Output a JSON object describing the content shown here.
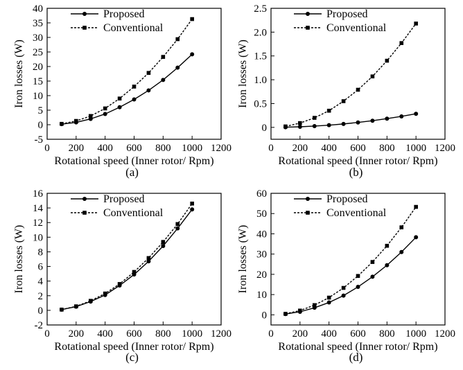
{
  "chart_data": [
    {
      "type": "line",
      "caption": "(a)",
      "xlabel": "Rotational speed (Inner rotor/ Rpm)",
      "ylabel": "Iron losses (W)",
      "xlim": [
        0,
        1200
      ],
      "ylim": [
        -5,
        40
      ],
      "xticks": [
        "0",
        "200",
        "400",
        "600",
        "800",
        "1000",
        "1200"
      ],
      "yticks": [
        "-5",
        "0",
        "5",
        "10",
        "15",
        "20",
        "25",
        "30",
        "35",
        "40"
      ],
      "legend_position": "top-left",
      "x": [
        100,
        200,
        300,
        400,
        500,
        600,
        700,
        800,
        900,
        1000
      ],
      "series": [
        {
          "name": "Proposed",
          "style": "solid",
          "marker": "circle",
          "values": [
            0.2,
            0.8,
            2.0,
            3.7,
            6.0,
            8.7,
            11.8,
            15.4,
            19.6,
            24.2
          ]
        },
        {
          "name": "Conventional",
          "style": "dashed",
          "marker": "square",
          "values": [
            0.3,
            1.3,
            3.0,
            5.6,
            9.0,
            13.1,
            17.8,
            23.3,
            29.4,
            36.3
          ]
        }
      ]
    },
    {
      "type": "line",
      "caption": "(b)",
      "xlabel": "Rotational speed (Inner rotor/ Rpm)",
      "ylabel": "Iron losses (W)",
      "xlim": [
        0,
        1200
      ],
      "ylim": [
        -0.25,
        2.5
      ],
      "xticks": [
        "0",
        "200",
        "400",
        "600",
        "800",
        "1000",
        "1200"
      ],
      "yticks": [
        "0",
        "0.5",
        "1.0",
        "1.5",
        "2.0",
        "2.5"
      ],
      "legend_position": "top-left",
      "x": [
        100,
        200,
        300,
        400,
        500,
        600,
        700,
        800,
        900,
        1000
      ],
      "series": [
        {
          "name": "Proposed",
          "style": "solid",
          "marker": "circle",
          "values": [
            0.003,
            0.012,
            0.027,
            0.046,
            0.072,
            0.103,
            0.14,
            0.183,
            0.231,
            0.285
          ]
        },
        {
          "name": "Conventional",
          "style": "dashed",
          "marker": "square",
          "values": [
            0.02,
            0.09,
            0.2,
            0.35,
            0.55,
            0.79,
            1.07,
            1.4,
            1.77,
            2.18
          ]
        }
      ]
    },
    {
      "type": "line",
      "caption": "(c)",
      "xlabel": "Rotational speed (Inner rotor/ Rpm)",
      "ylabel": "Iron losses (W)",
      "xlim": [
        0,
        1200
      ],
      "ylim": [
        -2,
        16
      ],
      "xticks": [
        "0",
        "200",
        "400",
        "600",
        "800",
        "1000",
        "1200"
      ],
      "yticks": [
        "-2",
        "0",
        "2",
        "4",
        "6",
        "8",
        "10",
        "12",
        "14",
        "16"
      ],
      "legend_position": "top-left",
      "x": [
        100,
        200,
        300,
        400,
        500,
        600,
        700,
        800,
        900,
        1000
      ],
      "series": [
        {
          "name": "Proposed",
          "style": "solid",
          "marker": "circle",
          "values": [
            0.1,
            0.5,
            1.2,
            2.1,
            3.4,
            4.9,
            6.7,
            8.8,
            11.2,
            13.8
          ]
        },
        {
          "name": "Conventional",
          "style": "dashed",
          "marker": "square",
          "values": [
            0.1,
            0.55,
            1.3,
            2.3,
            3.6,
            5.25,
            7.15,
            9.35,
            11.8,
            14.6
          ]
        }
      ]
    },
    {
      "type": "line",
      "caption": "(d)",
      "xlabel": "Rotational speed (Inner rotor/ Rpm)",
      "ylabel": "Iron losses (W)",
      "xlim": [
        0,
        1200
      ],
      "ylim": [
        -5,
        60
      ],
      "xticks": [
        "0",
        "200",
        "400",
        "600",
        "800",
        "1000",
        "1200"
      ],
      "yticks": [
        "0",
        "10",
        "20",
        "30",
        "40",
        "50",
        "60"
      ],
      "legend_position": "top-left",
      "x": [
        100,
        200,
        300,
        400,
        500,
        600,
        700,
        800,
        900,
        1000
      ],
      "series": [
        {
          "name": "Proposed",
          "style": "solid",
          "marker": "circle",
          "values": [
            0.4,
            1.5,
            3.5,
            6.1,
            9.5,
            13.8,
            18.8,
            24.5,
            31.0,
            38.3
          ]
        },
        {
          "name": "Conventional",
          "style": "dashed",
          "marker": "square",
          "values": [
            0.5,
            2.1,
            4.8,
            8.5,
            13.3,
            19.2,
            26.1,
            34.1,
            43.2,
            53.3
          ]
        }
      ]
    }
  ]
}
